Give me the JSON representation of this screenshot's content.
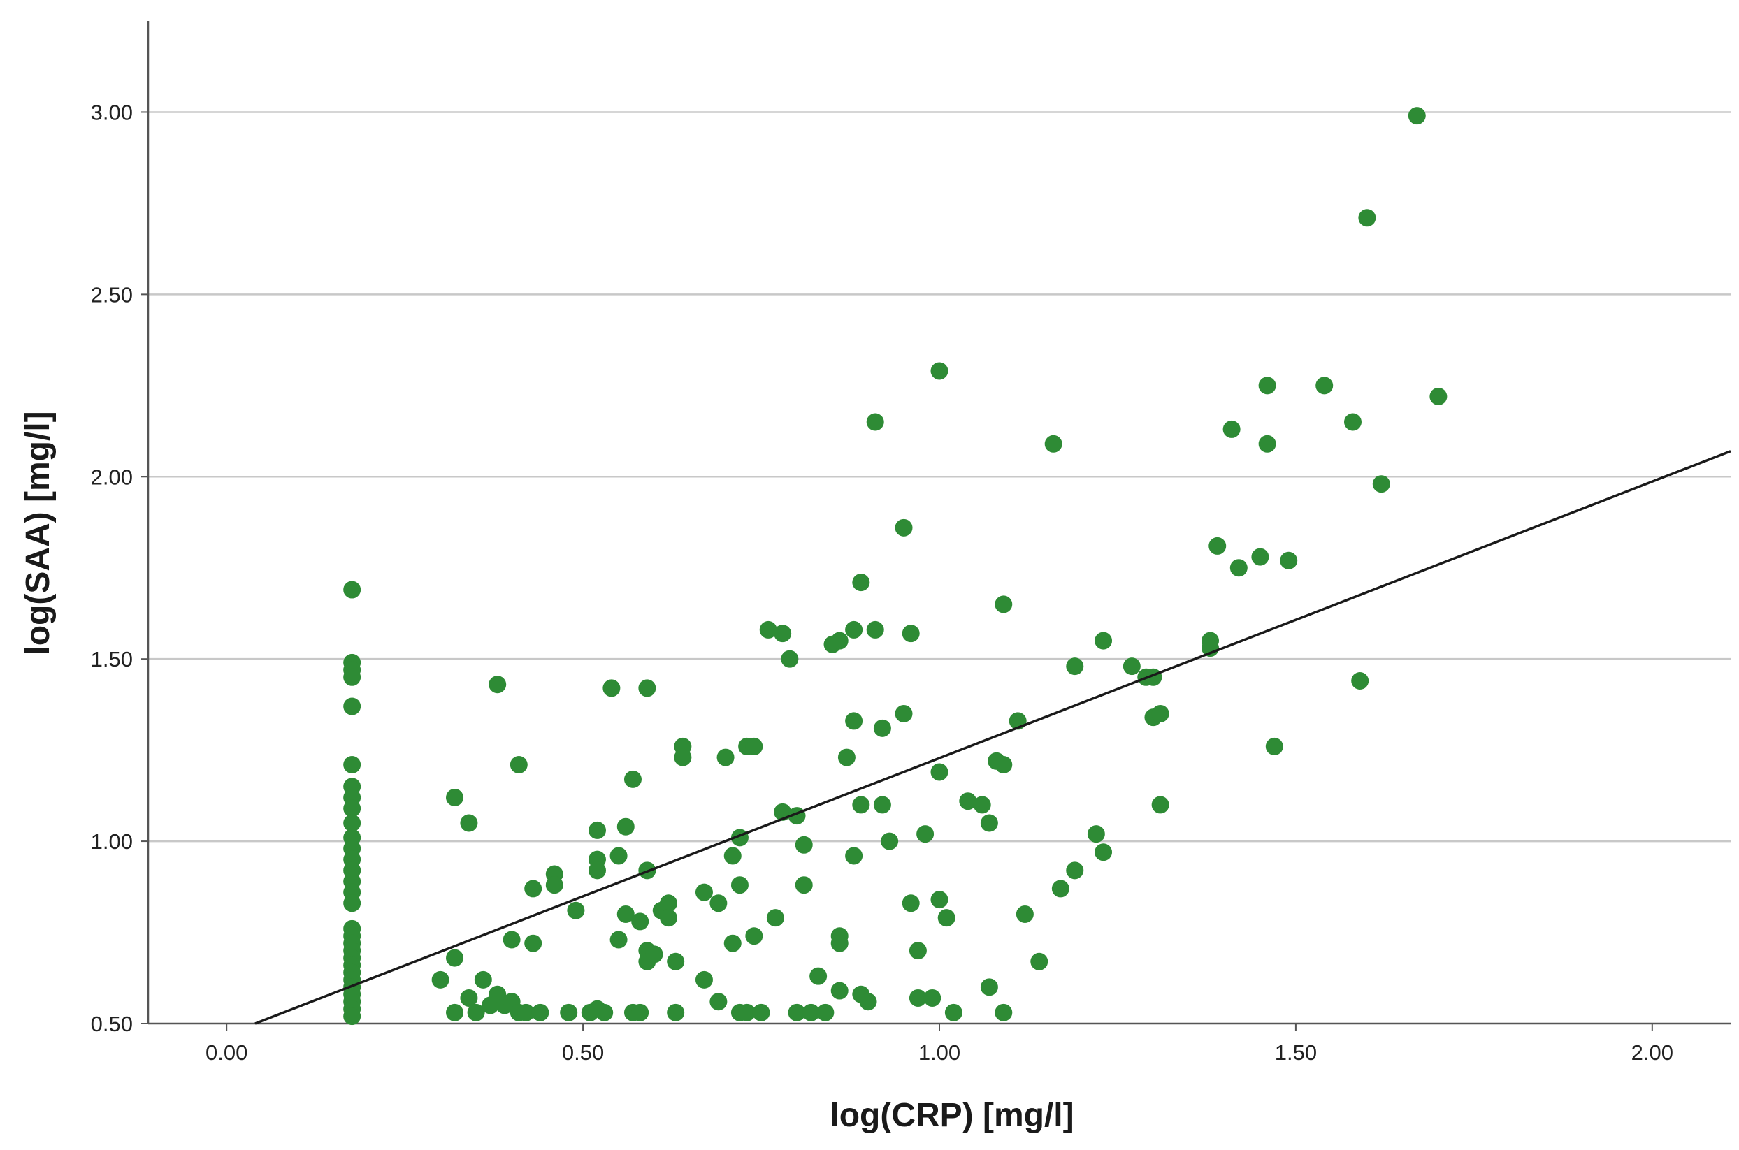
{
  "chart_data": {
    "type": "scatter",
    "title": "",
    "xlabel": "log(CRP) [mg/l]",
    "ylabel": "log(SAA) [mg/l]",
    "xlim": [
      -0.11,
      2.11
    ],
    "ylim": [
      0.5,
      3.25
    ],
    "x_ticks": [
      "0.00",
      "0.50",
      "1.00",
      "1.50",
      "2.00"
    ],
    "y_ticks": [
      "0.50",
      "1.00",
      "1.50",
      "2.00",
      "2.50",
      "3.00"
    ],
    "grid": "horizontal",
    "legend": "none",
    "colors": {
      "point": "#2e8b35",
      "fit_line": "#1a1a1a",
      "grid": "#c8c8c8",
      "axis": "#555555"
    },
    "fit_line": {
      "x": [
        0.04,
        2.11
      ],
      "y": [
        0.5,
        2.07
      ]
    },
    "points": [
      [
        0.176,
        1.69
      ],
      [
        0.176,
        1.49
      ],
      [
        0.176,
        1.47
      ],
      [
        0.176,
        1.45
      ],
      [
        0.176,
        1.37
      ],
      [
        0.176,
        1.21
      ],
      [
        0.176,
        1.15
      ],
      [
        0.176,
        1.12
      ],
      [
        0.176,
        1.09
      ],
      [
        0.176,
        1.05
      ],
      [
        0.176,
        1.01
      ],
      [
        0.176,
        0.98
      ],
      [
        0.176,
        0.95
      ],
      [
        0.176,
        0.92
      ],
      [
        0.176,
        0.89
      ],
      [
        0.176,
        0.86
      ],
      [
        0.176,
        0.83
      ],
      [
        0.176,
        0.76
      ],
      [
        0.176,
        0.74
      ],
      [
        0.176,
        0.72
      ],
      [
        0.176,
        0.7
      ],
      [
        0.176,
        0.68
      ],
      [
        0.176,
        0.66
      ],
      [
        0.176,
        0.64
      ],
      [
        0.176,
        0.62
      ],
      [
        0.176,
        0.6
      ],
      [
        0.176,
        0.58
      ],
      [
        0.176,
        0.56
      ],
      [
        0.176,
        0.54
      ],
      [
        0.176,
        0.52
      ],
      [
        0.3,
        0.62
      ],
      [
        0.32,
        1.12
      ],
      [
        0.32,
        0.68
      ],
      [
        0.32,
        0.53
      ],
      [
        0.34,
        1.05
      ],
      [
        0.34,
        0.57
      ],
      [
        0.35,
        0.53
      ],
      [
        0.36,
        0.62
      ],
      [
        0.37,
        0.55
      ],
      [
        0.38,
        1.43
      ],
      [
        0.38,
        0.58
      ],
      [
        0.39,
        0.55
      ],
      [
        0.4,
        0.73
      ],
      [
        0.4,
        0.56
      ],
      [
        0.41,
        0.53
      ],
      [
        0.41,
        1.21
      ],
      [
        0.42,
        0.53
      ],
      [
        0.43,
        0.87
      ],
      [
        0.43,
        0.72
      ],
      [
        0.44,
        0.53
      ],
      [
        0.46,
        0.91
      ],
      [
        0.46,
        0.88
      ],
      [
        0.48,
        0.53
      ],
      [
        0.49,
        0.81
      ],
      [
        0.51,
        0.53
      ],
      [
        0.52,
        1.03
      ],
      [
        0.52,
        0.95
      ],
      [
        0.52,
        0.92
      ],
      [
        0.52,
        0.54
      ],
      [
        0.53,
        0.53
      ],
      [
        0.54,
        1.42
      ],
      [
        0.55,
        0.96
      ],
      [
        0.55,
        0.73
      ],
      [
        0.56,
        1.04
      ],
      [
        0.56,
        0.8
      ],
      [
        0.57,
        1.17
      ],
      [
        0.57,
        0.53
      ],
      [
        0.58,
        0.78
      ],
      [
        0.58,
        0.53
      ],
      [
        0.59,
        1.42
      ],
      [
        0.59,
        0.92
      ],
      [
        0.59,
        0.7
      ],
      [
        0.59,
        0.67
      ],
      [
        0.6,
        0.69
      ],
      [
        0.61,
        0.81
      ],
      [
        0.62,
        0.83
      ],
      [
        0.62,
        0.79
      ],
      [
        0.63,
        0.67
      ],
      [
        0.63,
        0.53
      ],
      [
        0.64,
        1.26
      ],
      [
        0.64,
        1.23
      ],
      [
        0.67,
        0.86
      ],
      [
        0.67,
        0.62
      ],
      [
        0.69,
        0.83
      ],
      [
        0.69,
        0.56
      ],
      [
        0.7,
        1.23
      ],
      [
        0.71,
        0.96
      ],
      [
        0.71,
        0.72
      ],
      [
        0.72,
        1.01
      ],
      [
        0.72,
        0.88
      ],
      [
        0.72,
        0.53
      ],
      [
        0.73,
        1.26
      ],
      [
        0.73,
        0.53
      ],
      [
        0.74,
        1.26
      ],
      [
        0.74,
        0.74
      ],
      [
        0.75,
        0.53
      ],
      [
        0.76,
        1.58
      ],
      [
        0.77,
        0.79
      ],
      [
        0.78,
        1.57
      ],
      [
        0.78,
        1.08
      ],
      [
        0.79,
        1.5
      ],
      [
        0.8,
        1.07
      ],
      [
        0.8,
        0.53
      ],
      [
        0.81,
        0.99
      ],
      [
        0.81,
        0.88
      ],
      [
        0.82,
        0.53
      ],
      [
        0.83,
        0.63
      ],
      [
        0.84,
        0.53
      ],
      [
        0.85,
        1.54
      ],
      [
        0.86,
        1.55
      ],
      [
        0.86,
        0.74
      ],
      [
        0.86,
        0.72
      ],
      [
        0.86,
        0.59
      ],
      [
        0.87,
        1.23
      ],
      [
        0.88,
        1.58
      ],
      [
        0.88,
        1.33
      ],
      [
        0.88,
        0.96
      ],
      [
        0.89,
        1.71
      ],
      [
        0.89,
        1.1
      ],
      [
        0.89,
        0.58
      ],
      [
        0.9,
        0.56
      ],
      [
        0.91,
        2.15
      ],
      [
        0.91,
        1.58
      ],
      [
        0.92,
        1.1
      ],
      [
        0.92,
        1.31
      ],
      [
        0.93,
        1.0
      ],
      [
        0.95,
        1.35
      ],
      [
        0.95,
        1.86
      ],
      [
        0.96,
        1.57
      ],
      [
        0.96,
        0.83
      ],
      [
        0.97,
        0.7
      ],
      [
        0.97,
        0.57
      ],
      [
        0.98,
        1.02
      ],
      [
        0.99,
        0.57
      ],
      [
        1.0,
        2.29
      ],
      [
        1.0,
        0.84
      ],
      [
        1.0,
        1.19
      ],
      [
        1.01,
        0.79
      ],
      [
        1.02,
        0.53
      ],
      [
        1.04,
        1.11
      ],
      [
        1.06,
        1.1
      ],
      [
        1.07,
        1.05
      ],
      [
        1.07,
        0.6
      ],
      [
        1.08,
        1.22
      ],
      [
        1.09,
        1.21
      ],
      [
        1.09,
        0.53
      ],
      [
        1.09,
        1.65
      ],
      [
        1.11,
        1.33
      ],
      [
        1.12,
        0.8
      ],
      [
        1.14,
        0.67
      ],
      [
        1.16,
        2.09
      ],
      [
        1.17,
        0.87
      ],
      [
        1.19,
        0.92
      ],
      [
        1.19,
        1.48
      ],
      [
        1.22,
        1.02
      ],
      [
        1.23,
        1.55
      ],
      [
        1.23,
        0.97
      ],
      [
        1.27,
        1.48
      ],
      [
        1.29,
        1.45
      ],
      [
        1.3,
        1.45
      ],
      [
        1.3,
        1.34
      ],
      [
        1.31,
        1.35
      ],
      [
        1.31,
        1.1
      ],
      [
        1.38,
        1.55
      ],
      [
        1.38,
        1.53
      ],
      [
        1.39,
        1.81
      ],
      [
        1.41,
        2.13
      ],
      [
        1.42,
        1.75
      ],
      [
        1.45,
        1.78
      ],
      [
        1.46,
        2.25
      ],
      [
        1.46,
        2.09
      ],
      [
        1.47,
        1.26
      ],
      [
        1.49,
        1.77
      ],
      [
        1.54,
        2.25
      ],
      [
        1.58,
        2.15
      ],
      [
        1.59,
        1.44
      ],
      [
        1.6,
        2.71
      ],
      [
        1.62,
        1.98
      ],
      [
        1.67,
        2.99
      ],
      [
        1.7,
        2.22
      ]
    ]
  }
}
